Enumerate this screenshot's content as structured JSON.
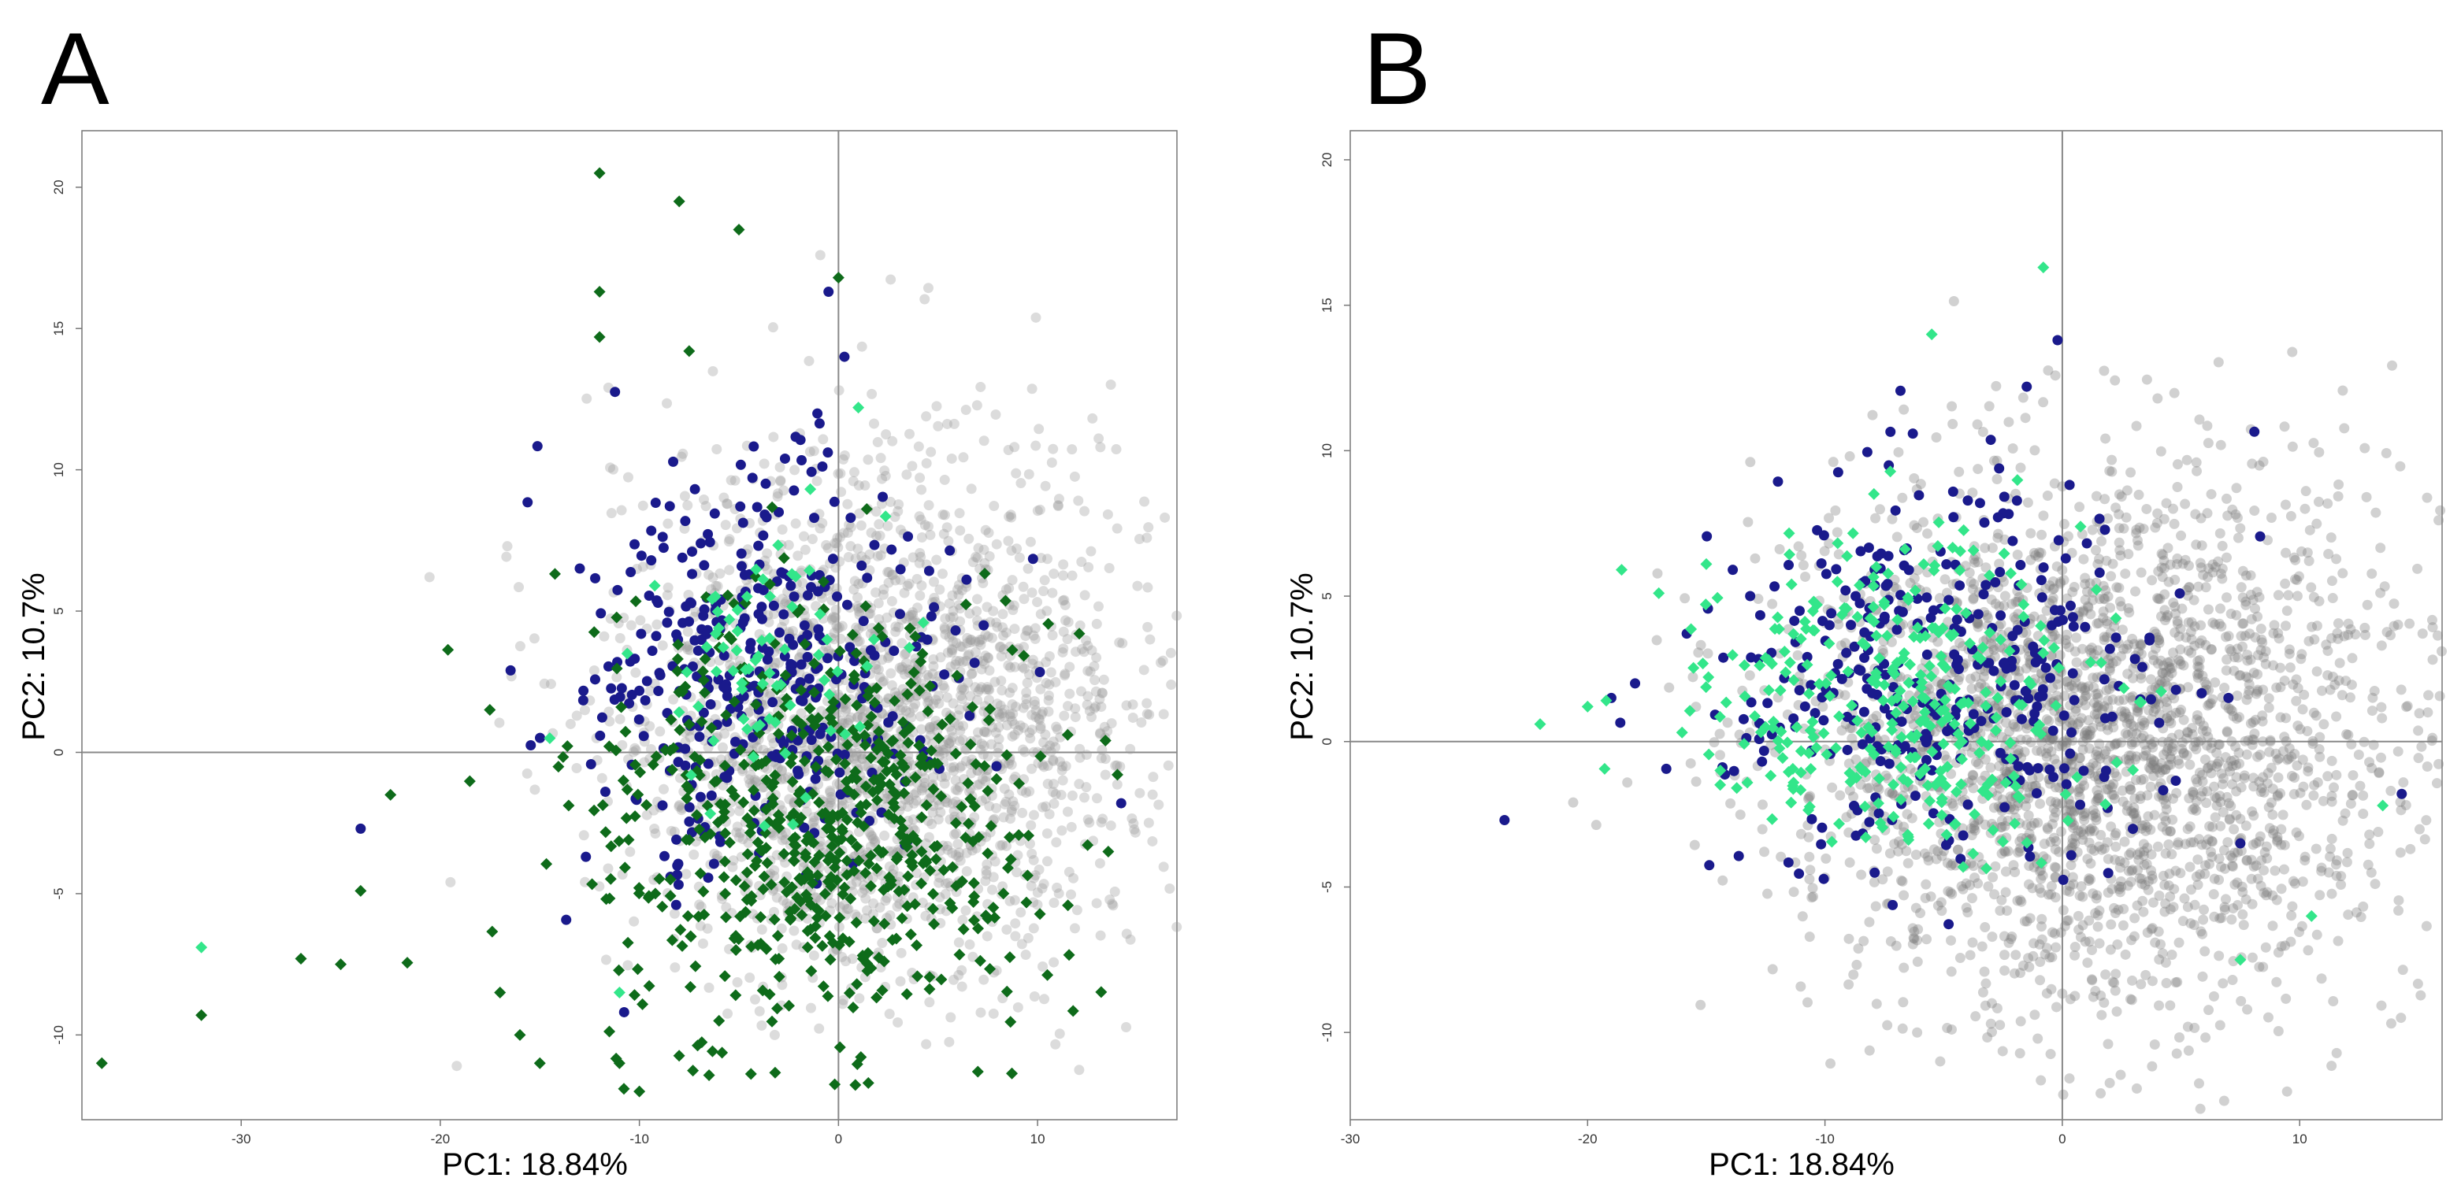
{
  "chart_data": [
    {
      "panel": "A",
      "type": "scatter",
      "xlabel": "PC1: 18.84%",
      "ylabel": "PC2: 10.7%",
      "xlim": [
        -38,
        17
      ],
      "ylim": [
        -13,
        22
      ],
      "xticks": [
        -30,
        -20,
        -10,
        0,
        10
      ],
      "yticks": [
        -10,
        -5,
        0,
        5,
        10,
        15,
        20
      ],
      "x_tick_labels": [
        "-30",
        "-20",
        "-10",
        "0",
        "10"
      ],
      "y_tick_labels": [
        "-10",
        "-5",
        "0",
        "5",
        "10",
        "15",
        "20"
      ],
      "reference_lines": {
        "x": 0,
        "y": 0
      },
      "series": [
        {
          "name": "background",
          "color": "#9a9a9a",
          "shape": "circle",
          "opacity": 0.35,
          "cloud": {
            "center": [
              2,
              1
            ],
            "spread": [
              6.5,
              4.5
            ],
            "count": 2200
          }
        },
        {
          "name": "dark-blue",
          "color": "#1a1a8c",
          "shape": "circle",
          "cloud": {
            "center": [
              -4,
              3
            ],
            "spread": [
              4.5,
              3.5
            ],
            "count": 380
          },
          "points": [
            [
              -24,
              -2.7
            ],
            [
              -0.5,
              16.3
            ],
            [
              14.2,
              -1.8
            ],
            [
              0.3,
              14
            ],
            [
              -3,
              8.5
            ]
          ]
        },
        {
          "name": "dark-green",
          "color": "#0e6b1a",
          "shape": "diamond",
          "cloud": {
            "center": [
              -1,
              -2.5
            ],
            "spread": [
              6,
              3.8
            ],
            "count": 620
          },
          "points": [
            [
              -37,
              -11
            ],
            [
              -32,
              -9.3
            ],
            [
              -25,
              -7.5
            ],
            [
              -24,
              -4.9
            ],
            [
              -22.5,
              -1.5
            ],
            [
              -12,
              20.5
            ],
            [
              -8,
              19.5
            ],
            [
              -5,
              18.5
            ],
            [
              -12,
              16.3
            ],
            [
              -12,
              14.7
            ],
            [
              -7.5,
              14.2
            ],
            [
              0,
              16.8
            ],
            [
              -10,
              -12
            ],
            [
              -11,
              -11
            ],
            [
              -6,
              -9.5
            ],
            [
              7,
              -11.3
            ],
            [
              1.5,
              -11.7
            ],
            [
              -15,
              -11
            ],
            [
              -16,
              -10
            ],
            [
              -17,
              -8.5
            ],
            [
              -27,
              -7.3
            ]
          ]
        },
        {
          "name": "light-green",
          "color": "#33e68a",
          "shape": "diamond",
          "cloud": {
            "center": [
              -4,
              3
            ],
            "spread": [
              3,
              2.5
            ],
            "count": 70
          },
          "points": [
            [
              -32,
              -6.9
            ],
            [
              -11,
              -8.5
            ],
            [
              1,
              12.2
            ],
            [
              -14.5,
              0.5
            ]
          ]
        }
      ]
    },
    {
      "panel": "B",
      "type": "scatter",
      "xlabel": "PC1: 18.84%",
      "ylabel": "PC2: 10.7%",
      "xlim": [
        -30,
        16
      ],
      "ylim": [
        -13,
        21
      ],
      "xticks": [
        -30,
        -20,
        -10,
        0,
        10
      ],
      "yticks": [
        -10,
        -5,
        0,
        5,
        10,
        15,
        20
      ],
      "x_tick_labels": [
        "-30",
        "-20",
        "-10",
        "0",
        "10"
      ],
      "y_tick_labels": [
        "-10",
        "-5",
        "0",
        "5",
        "10",
        "15",
        "20"
      ],
      "reference_lines": {
        "x": 0,
        "y": 0
      },
      "series": [
        {
          "name": "background",
          "color": "#7a7a7a",
          "shape": "circle",
          "opacity": 0.35,
          "cloud": {
            "center": [
              1.5,
              0
            ],
            "spread": [
              6.5,
              4.5
            ],
            "count": 2600
          }
        },
        {
          "name": "dark-blue",
          "color": "#1a1a8c",
          "shape": "circle",
          "cloud": {
            "center": [
              -5,
              2.5
            ],
            "spread": [
              4.5,
              3.2
            ],
            "count": 360
          },
          "points": [
            [
              -23.5,
              -2.7
            ],
            [
              -0.2,
              13.8
            ],
            [
              14.3,
              -1.8
            ],
            [
              -1.5,
              12.2
            ],
            [
              -18,
              2
            ],
            [
              -19,
              1.5
            ],
            [
              7.5,
              -3.5
            ],
            [
              7,
              1.5
            ]
          ]
        },
        {
          "name": "light-green",
          "color": "#33e68a",
          "shape": "diamond",
          "cloud": {
            "center": [
              -7,
              1.5
            ],
            "spread": [
              4,
              2.8
            ],
            "count": 330
          },
          "points": [
            [
              -22,
              0.6
            ],
            [
              -20,
              1.2
            ],
            [
              -17,
              5.1
            ],
            [
              -15,
              6.1
            ],
            [
              -5.5,
              14
            ],
            [
              -0.8,
              16.3
            ],
            [
              13.5,
              -2.2
            ],
            [
              7.5,
              -7.5
            ],
            [
              10.5,
              -6
            ]
          ]
        }
      ]
    }
  ]
}
